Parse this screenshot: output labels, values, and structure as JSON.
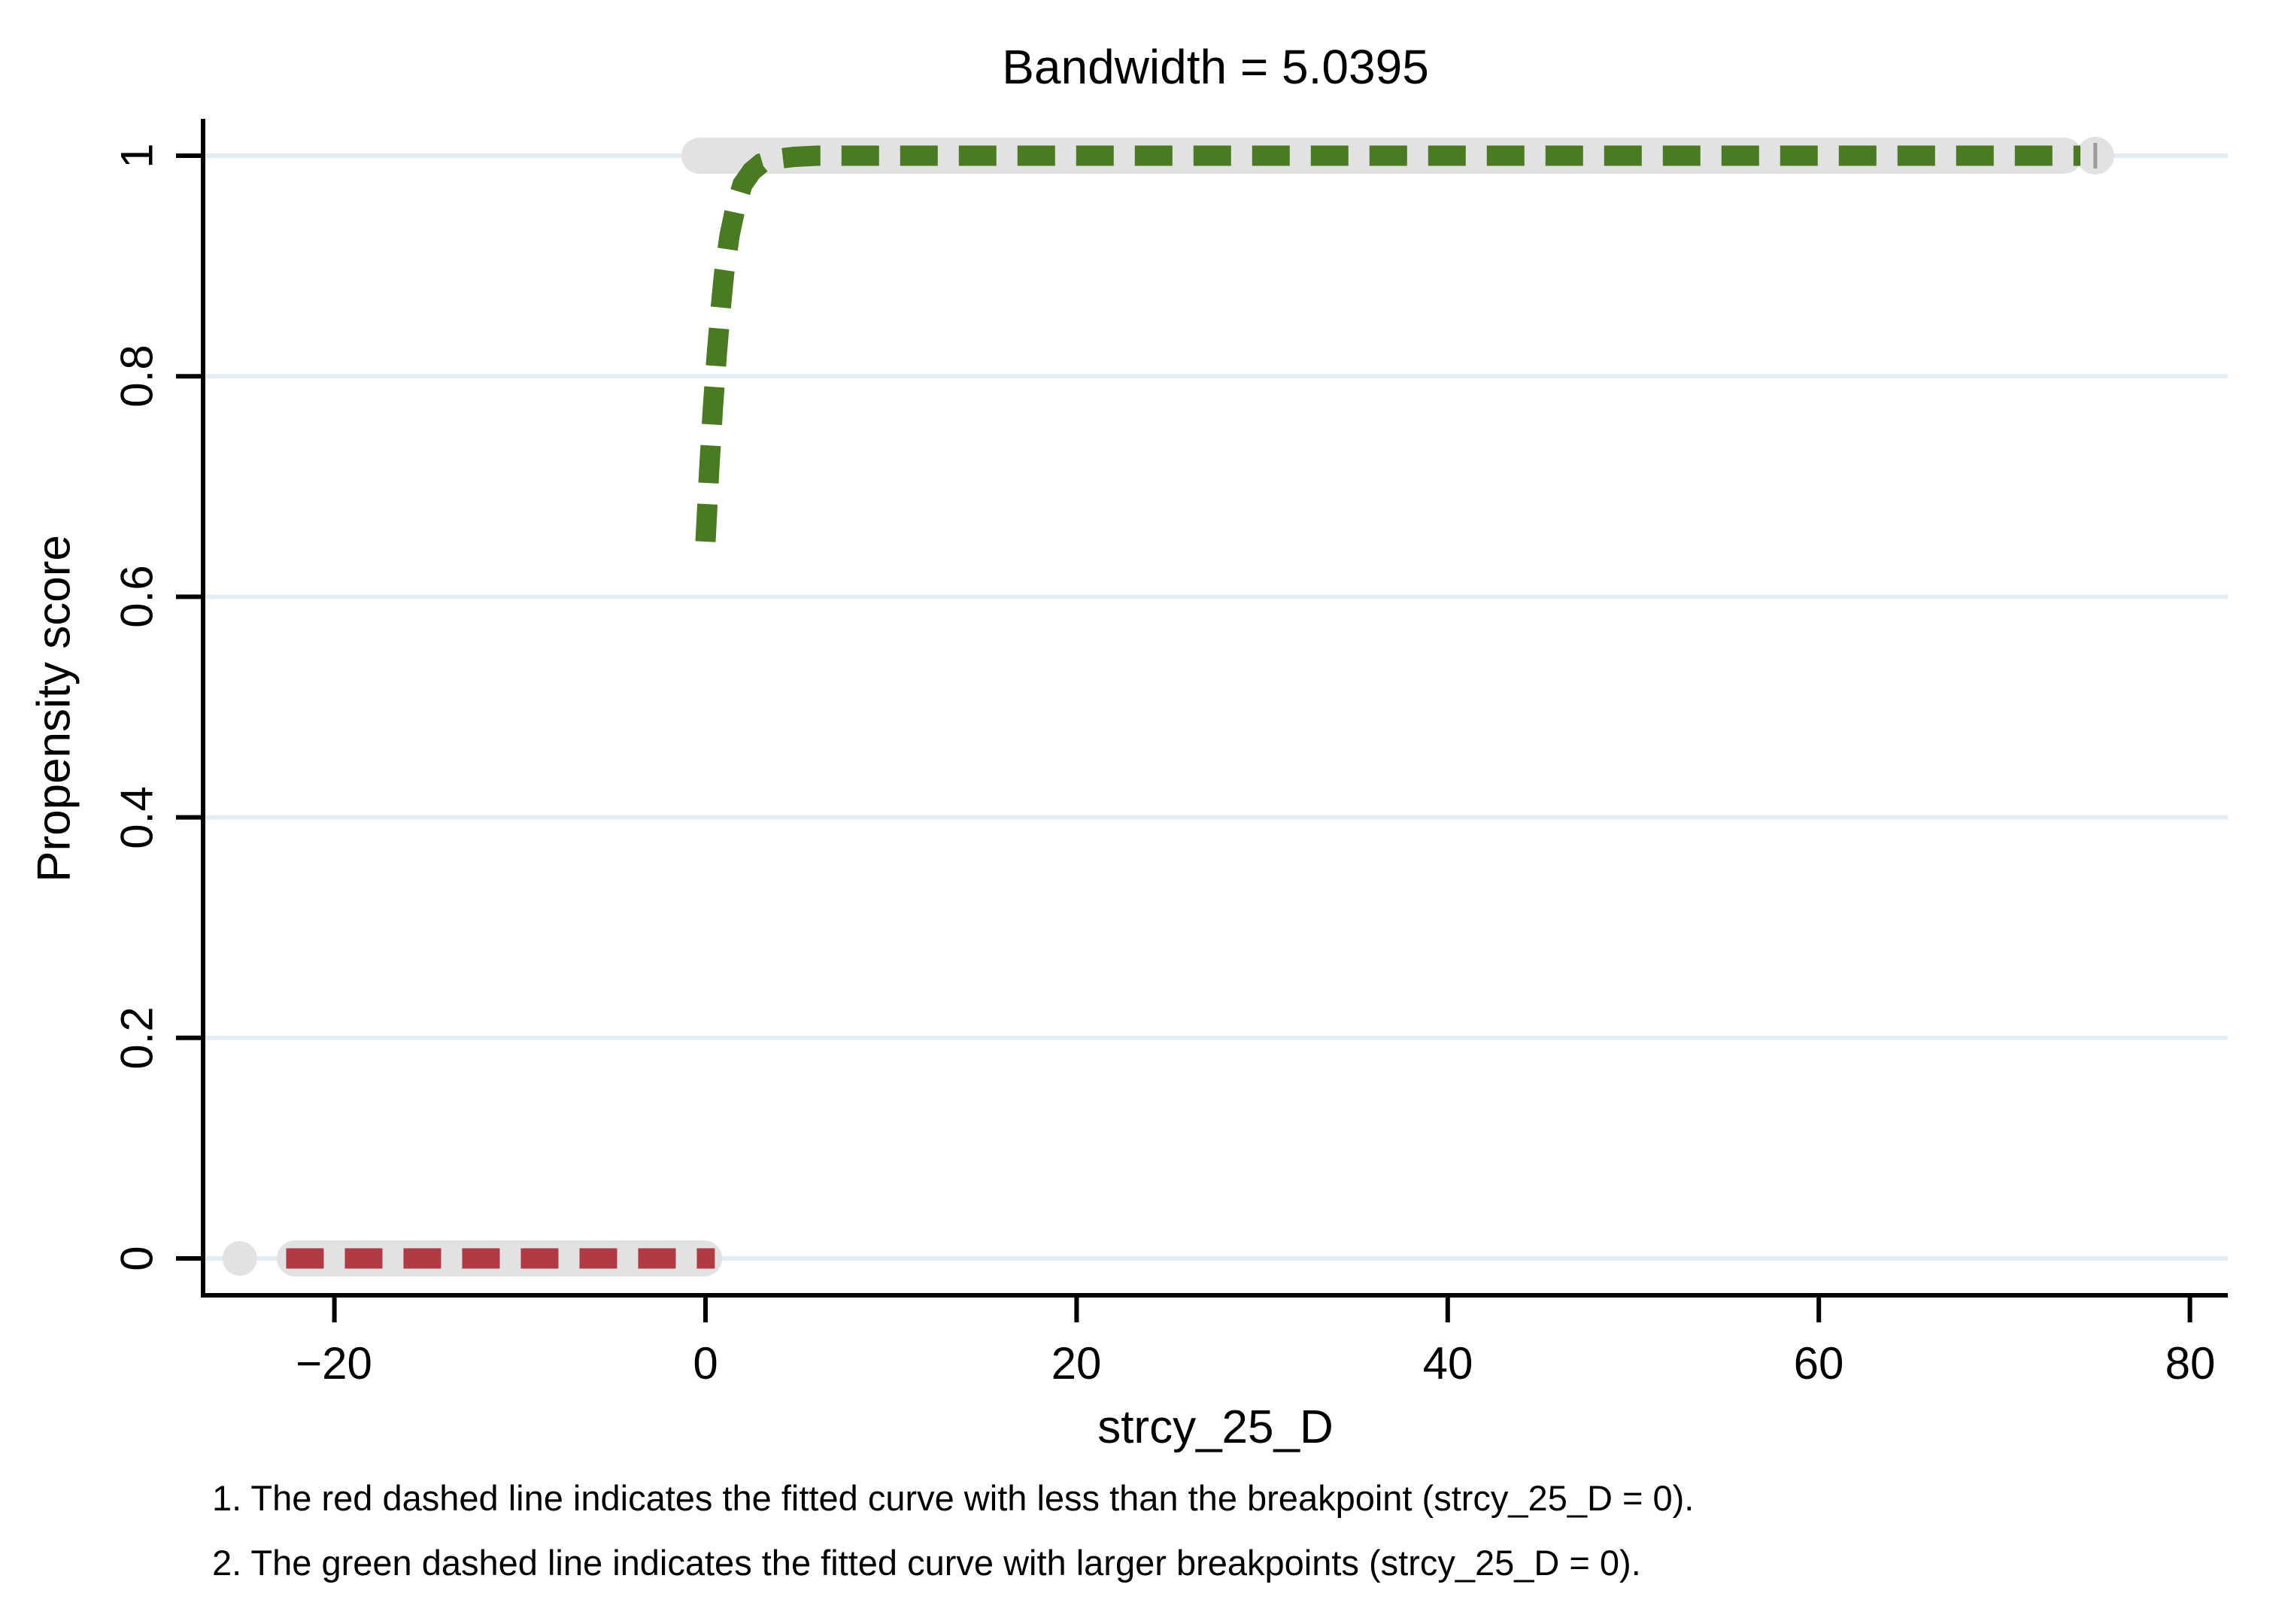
{
  "title": "Bandwidth = 5.0395",
  "chart_data": {
    "type": "line",
    "subtype": "regression-discontinuity propensity-score plot with scatter markers and two dashed fitted curves",
    "title": "Bandwidth = 5.0395",
    "xlabel": "strcy_25_D",
    "ylabel": "Propensity score",
    "xlim": [
      -27,
      81.5
    ],
    "ylim": [
      -0.033,
      1.033
    ],
    "grid": "light horizontal gridlines at every y tick",
    "legend_position": "none (explained in notes under the plot)",
    "x_tick_values": [
      -20,
      0,
      20,
      40,
      60,
      80
    ],
    "x_tick_labels": [
      "−20",
      "0",
      "20",
      "40",
      "60",
      "80"
    ],
    "y_tick_values": [
      0,
      0.2,
      0.4,
      0.6,
      0.8,
      1
    ],
    "y_tick_labels_top_to_bottom": [
      "1",
      "0.8",
      "0.6",
      "0.4",
      "0.2",
      "0"
    ],
    "colors": {
      "green_fit": "#4a7a21",
      "red_fit": "#b03b45",
      "marker_gray": "#e2e2e2",
      "marker_end_tick": "#9b9b9b",
      "gridline": "#e3edf3",
      "axis": "#000000"
    },
    "points_right": {
      "desc": "dense gray scatter markers at propensity score 1 (treated side)",
      "y": 1,
      "x_start": -1.3,
      "x_end": 74.2,
      "end_dot_x": 74.9
    },
    "points_left": {
      "desc": "dense gray scatter markers at propensity score 0 (control side)",
      "y": 0,
      "x_start": -23.1,
      "x_end": 0.9,
      "outlier_x": -25.1
    },
    "fit_left": {
      "name": "red dashed fitted curve below breakpoint",
      "y": 0,
      "x_start": -22.6,
      "x_end": 0.5
    },
    "fit_right": {
      "name": "green dashed fitted curve above breakpoint",
      "points": [
        [
          0,
          0.65
        ],
        [
          0.2,
          0.715
        ],
        [
          0.4,
          0.772
        ],
        [
          0.6,
          0.818
        ],
        [
          0.8,
          0.858
        ],
        [
          1,
          0.893
        ],
        [
          1.3,
          0.928
        ],
        [
          1.6,
          0.952
        ],
        [
          2,
          0.974
        ],
        [
          2.5,
          0.986
        ],
        [
          3,
          0.993
        ],
        [
          3.8,
          0.997
        ],
        [
          4.8,
          0.999
        ],
        [
          6,
          1.0
        ],
        [
          74.1,
          1.0
        ]
      ]
    },
    "notes": [
      "1. The red dashed line indicates the fitted curve with less than the breakpoint (strcy_25_D = 0).",
      "2. The green dashed line indicates the fitted curve with larger breakpoints (strcy_25_D = 0)."
    ]
  }
}
